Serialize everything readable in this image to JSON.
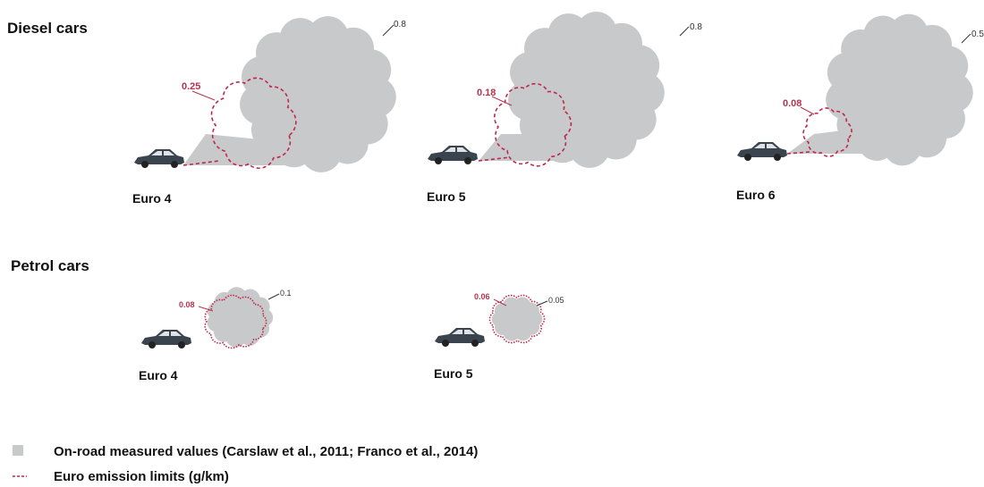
{
  "diesel": {
    "title": "Diesel cars",
    "items": [
      {
        "label": "Euro 4",
        "limit": "0.25",
        "measured": "0.8"
      },
      {
        "label": "Euro 5",
        "limit": "0.18",
        "measured": "0.8"
      },
      {
        "label": "Euro 6",
        "limit": "0.08",
        "measured": "0.5"
      }
    ]
  },
  "petrol": {
    "title": "Petrol cars",
    "items": [
      {
        "label": "Euro 4",
        "limit": "0.08",
        "measured": "0.1"
      },
      {
        "label": "Euro 5",
        "limit": "0.06",
        "measured": "0.05"
      }
    ]
  },
  "legend": {
    "measured": "On-road measured values (Carslaw et al., 2011; Franco et al., 2014)",
    "limit": "Euro emission limits (g/km)"
  }
}
